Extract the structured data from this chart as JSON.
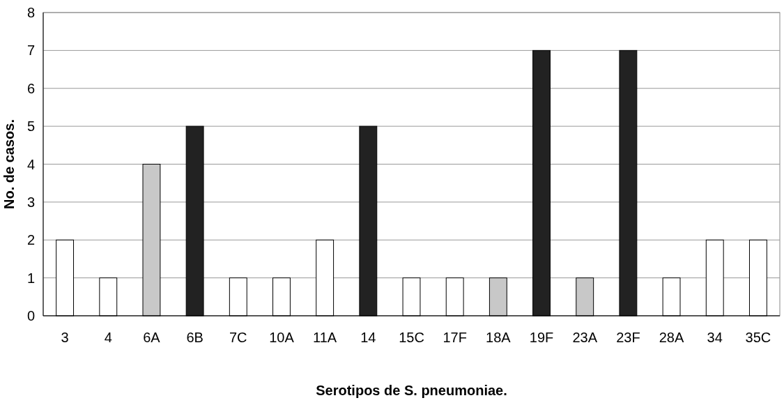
{
  "chart_data": {
    "type": "bar",
    "xlabel": "Serotipos de S. pneumoniae.",
    "ylabel": "No. de casos.",
    "categories": [
      "3",
      "4",
      "6A",
      "6B",
      "7C",
      "10A",
      "11A",
      "14",
      "15C",
      "17F",
      "18A",
      "19F",
      "23A",
      "23F",
      "28A",
      "34",
      "35C"
    ],
    "values": [
      2,
      1,
      4,
      5,
      1,
      1,
      2,
      5,
      1,
      1,
      1,
      7,
      1,
      7,
      1,
      2,
      2
    ],
    "colors": [
      "#ffffff",
      "#ffffff",
      "#c8c8c8",
      "#222222",
      "#ffffff",
      "#ffffff",
      "#ffffff",
      "#222222",
      "#ffffff",
      "#ffffff",
      "#c8c8c8",
      "#222222",
      "#c8c8c8",
      "#222222",
      "#ffffff",
      "#ffffff",
      "#ffffff"
    ],
    "ylim": [
      0,
      8
    ],
    "yticks": [
      0,
      1,
      2,
      3,
      4,
      5,
      6,
      7,
      8
    ],
    "grid": "y"
  }
}
